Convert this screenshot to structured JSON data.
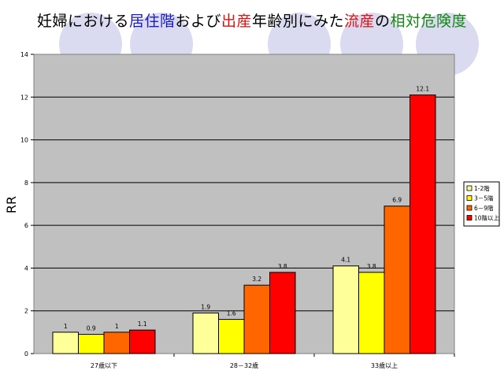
{
  "title": {
    "parts": [
      {
        "text": "妊婦における",
        "color": "#000000"
      },
      {
        "text": "居住階",
        "color": "#1a1acc"
      },
      {
        "text": "および",
        "color": "#000000"
      },
      {
        "text": "出産",
        "color": "#dd1111"
      },
      {
        "text": "年齢別にみた",
        "color": "#000000"
      },
      {
        "text": "流産",
        "color": "#dd1111"
      },
      {
        "text": "の",
        "color": "#000000"
      },
      {
        "text": "相対危険度",
        "color": "#118811"
      }
    ]
  },
  "chart_data": {
    "type": "bar",
    "categories": [
      "27歳以下",
      "28－32歳",
      "33歳以上"
    ],
    "series": [
      {
        "name": "1-2階",
        "color": "#ffff99",
        "values": [
          1,
          1.9,
          4.1
        ],
        "labels": [
          "1",
          "1.9",
          "4.1"
        ]
      },
      {
        "name": "3－5階",
        "color": "#ffff00",
        "values": [
          0.9,
          1.6,
          3.8
        ],
        "labels": [
          "0.9",
          "1.6",
          "3.8"
        ]
      },
      {
        "name": "6－9階",
        "color": "#ff6600",
        "values": [
          1,
          3.2,
          6.9
        ],
        "labels": [
          "1",
          "3.2",
          "6.9"
        ]
      },
      {
        "name": "10階以上",
        "color": "#ff0000",
        "values": [
          1.1,
          3.8,
          12.1
        ],
        "labels": [
          "1.1",
          "3.8",
          "12.1"
        ]
      }
    ],
    "ylabel": "RR",
    "xlabel": "",
    "ylim": [
      0,
      14
    ],
    "yticks": [
      0,
      2,
      4,
      6,
      8,
      10,
      12,
      14
    ],
    "grid": true,
    "legend": "right",
    "plot_background": "#c0c0c0"
  }
}
